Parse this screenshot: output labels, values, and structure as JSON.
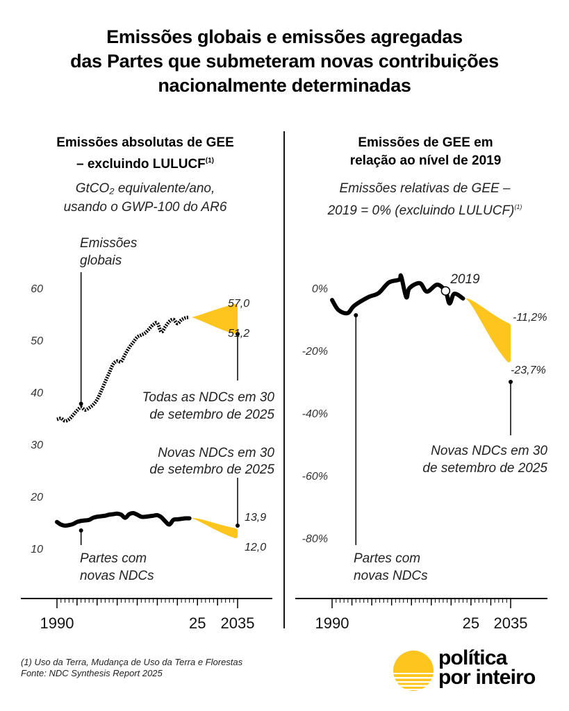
{
  "title": {
    "lines": [
      "Emissões globais e emissões agregadas",
      "das Partes que submeteram novas contribuições",
      "nacionalmente determinadas"
    ]
  },
  "colors": {
    "ink": "#000000",
    "accent_yellow": "#FDC51E",
    "divider": "#111111"
  },
  "left_panel": {
    "title_line1": "Emissões absolutas de GEE",
    "title_line2": "– excluindo LULUCF",
    "title_sup": "(1)",
    "subtitle_line1": "GtCO₂ equivalente/ano,",
    "subtitle_line2": "usando o GWP-100 do AR6"
  },
  "right_panel": {
    "title_line1": "Emissões de GEE em",
    "title_line2": "relação ao nível de 2019",
    "subtitle_line1": "Emissões relativas de GEE –",
    "subtitle_line2": "2019 = 0% (excluindo LULUCF)",
    "subtitle_sup": "(1)"
  },
  "chart_data": [
    {
      "type": "line",
      "title": "Emissões absolutas de GEE – excluindo LULUCF",
      "ylabel": "GtCO₂ equivalente/ano, usando o GWP-100 do AR6",
      "xlabel": "",
      "xlim": [
        1990,
        2035
      ],
      "ylim": [
        10,
        60
      ],
      "yticks": [
        60,
        50,
        40,
        30,
        20,
        10
      ],
      "ytick_labels": [
        "60",
        "50",
        "40",
        "30",
        "20",
        "10"
      ],
      "xtick_labels": [
        {
          "year": 1990,
          "label": "1990"
        },
        {
          "year": 2025,
          "label": "25"
        },
        {
          "year": 2035,
          "label": "2035"
        }
      ],
      "grid": false,
      "series": [
        {
          "name": "Emissões globais",
          "style": "dotted",
          "x": [
            1990,
            1991,
            1992,
            1993,
            1994,
            1995,
            1996,
            1997,
            1998,
            1999,
            2000,
            2001,
            2002,
            2003,
            2004,
            2005,
            2006,
            2007,
            2008,
            2009,
            2010,
            2011,
            2012,
            2013,
            2014,
            2015,
            2016,
            2017,
            2018,
            2019,
            2020,
            2021,
            2022,
            2023
          ],
          "y": [
            34.8,
            35.0,
            34.5,
            34.8,
            35.6,
            36.5,
            37.1,
            36.6,
            37.0,
            37.6,
            38.6,
            40.2,
            42.0,
            43.7,
            45.4,
            46.0,
            45.9,
            47.3,
            48.6,
            49.6,
            50.6,
            51.0,
            51.4,
            52.2,
            53.0,
            53.3,
            51.6,
            52.6,
            53.6,
            54.0,
            53.2,
            53.9,
            54.3,
            54.4
          ]
        },
        {
          "name": "Partes com novas NDCs",
          "style": "solid",
          "x": [
            1990,
            1991,
            1992,
            1993,
            1994,
            1995,
            1996,
            1997,
            1998,
            1999,
            2000,
            2001,
            2002,
            2003,
            2004,
            2005,
            2006,
            2007,
            2008,
            2009,
            2010,
            2011,
            2012,
            2013,
            2014,
            2015,
            2016,
            2017,
            2018,
            2019,
            2020,
            2021,
            2022,
            2023
          ],
          "y": [
            15.1,
            14.6,
            14.4,
            14.5,
            14.7,
            15.1,
            15.3,
            15.4,
            15.5,
            15.9,
            16.1,
            16.2,
            16.3,
            16.5,
            16.6,
            16.7,
            16.5,
            15.9,
            16.6,
            16.8,
            16.5,
            16.1,
            16.1,
            16.2,
            16.3,
            16.4,
            16.0,
            15.2,
            14.6,
            15.5,
            15.6,
            15.7,
            15.8,
            15.8
          ]
        }
      ],
      "projections": [
        {
          "name": "Todas as NDCs em 30 de setembro de 2025",
          "from_year": 2024,
          "to_year": 2035,
          "start_value": 54.4,
          "end_high": 57.0,
          "end_low": 51.2,
          "labels": [
            "57,0",
            "51,2"
          ]
        },
        {
          "name": "Novas NDCs em 30 de setembro de 2025",
          "from_year": 2024,
          "to_year": 2035,
          "start_value": 15.8,
          "end_high": 13.9,
          "end_low": 12.0,
          "labels": [
            "13,9",
            "12,0"
          ]
        }
      ],
      "annotations": [
        {
          "text_lines": [
            "Emissões",
            "globais"
          ],
          "year": 1996,
          "value": 37.8
        },
        {
          "text_lines": [
            "Todas as NDCs em 30",
            "de setembro de 2025"
          ],
          "year": 2035,
          "value": 51.2
        },
        {
          "text_lines": [
            "Novas NDCs em 30",
            "de setembro de 2025"
          ],
          "year": 2035,
          "value": 14.3
        },
        {
          "text_lines": [
            "Partes com",
            "novas NDCs"
          ],
          "year": 1996,
          "value": 13.8
        }
      ]
    },
    {
      "type": "line",
      "title": "Emissões de GEE em relação ao nível de 2019",
      "ylabel": "Emissões relativas de GEE – 2019 = 0% (excluindo LULUCF)",
      "xlabel": "",
      "xlim": [
        1990,
        2035
      ],
      "ylim": [
        -80,
        0
      ],
      "yticks": [
        0,
        -20,
        -40,
        -60,
        -80
      ],
      "ytick_labels": [
        "0%",
        "-20%",
        "-40%",
        "-60%",
        "-80%"
      ],
      "xtick_labels": [
        {
          "year": 1990,
          "label": "1990"
        },
        {
          "year": 2025,
          "label": "25"
        },
        {
          "year": 2035,
          "label": "2035"
        }
      ],
      "grid": false,
      "series": [
        {
          "name": "Partes com novas NDCs",
          "style": "solid",
          "x": [
            1990,
            1991.6,
            1993.9,
            1995.6,
            1999.1,
            2001.7,
            2004.3,
            2006.9,
            2007.4,
            2008.7,
            2009.5,
            2012.1,
            2013.9,
            2016.5,
            2018.6,
            2019.6,
            2020.8,
            2023.0
          ],
          "y": [
            -3.8,
            -7.0,
            -8.0,
            -5.6,
            -2.9,
            -1.6,
            1.8,
            2.7,
            3.8,
            -2.9,
            0.0,
            1.6,
            -1.1,
            1.1,
            -1.1,
            -4.9,
            -1.8,
            -3.3
          ]
        }
      ],
      "projections": [
        {
          "name": "Novas NDCs em 30 de setembro de 2025",
          "from_year": 2024,
          "to_year": 2035,
          "start_value": -3.3,
          "end_high": -11.2,
          "end_low": -23.7,
          "labels": [
            "-11,2%",
            "-23,7%"
          ]
        }
      ],
      "highlight_point": {
        "label": "2019",
        "year": 2018.6,
        "value": -1.1
      },
      "annotations": [
        {
          "text_lines": [
            "Partes com",
            "novas NDCs"
          ],
          "year": 1996,
          "value": -8.8
        },
        {
          "text_lines": [
            "Novas NDCs em 30",
            "de setembro de 2025"
          ],
          "year": 2035,
          "value": -30.0
        }
      ]
    }
  ],
  "footer": {
    "footnote": "(1) Uso da Terra, Mudança de Uso da Terra e Florestas",
    "source": "Fonte: NDC Synthesis Report 2025"
  },
  "logo": {
    "line1": "política",
    "line2": "por inteiro"
  }
}
